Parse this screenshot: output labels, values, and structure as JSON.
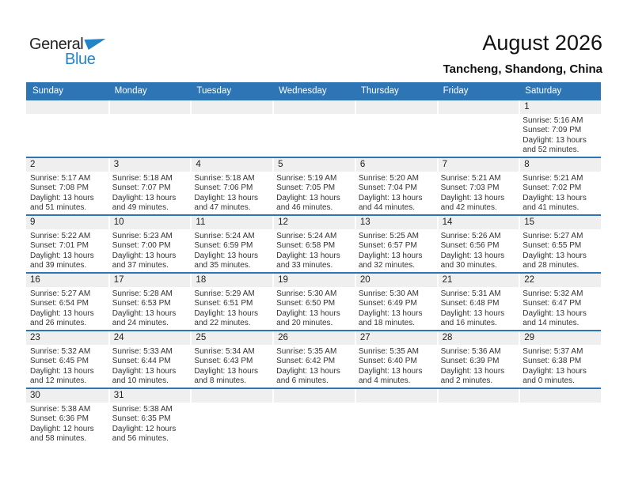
{
  "logo": {
    "part1": "General",
    "part2": "Blue"
  },
  "header": {
    "title": "August 2026",
    "location": "Tancheng, Shandong, China"
  },
  "colors": {
    "accent_blue": "#2E75B6",
    "logo_blue": "#2383C6",
    "day_strip_gray": "#EFEFEF"
  },
  "weekdays": [
    "Sunday",
    "Monday",
    "Tuesday",
    "Wednesday",
    "Thursday",
    "Friday",
    "Saturday"
  ],
  "weeks": [
    [
      null,
      null,
      null,
      null,
      null,
      null,
      {
        "day": "1",
        "lines": [
          "Sunrise: 5:16 AM",
          "Sunset: 7:09 PM",
          "Daylight: 13 hours",
          "and 52 minutes."
        ]
      }
    ],
    [
      {
        "day": "2",
        "lines": [
          "Sunrise: 5:17 AM",
          "Sunset: 7:08 PM",
          "Daylight: 13 hours",
          "and 51 minutes."
        ]
      },
      {
        "day": "3",
        "lines": [
          "Sunrise: 5:18 AM",
          "Sunset: 7:07 PM",
          "Daylight: 13 hours",
          "and 49 minutes."
        ]
      },
      {
        "day": "4",
        "lines": [
          "Sunrise: 5:18 AM",
          "Sunset: 7:06 PM",
          "Daylight: 13 hours",
          "and 47 minutes."
        ]
      },
      {
        "day": "5",
        "lines": [
          "Sunrise: 5:19 AM",
          "Sunset: 7:05 PM",
          "Daylight: 13 hours",
          "and 46 minutes."
        ]
      },
      {
        "day": "6",
        "lines": [
          "Sunrise: 5:20 AM",
          "Sunset: 7:04 PM",
          "Daylight: 13 hours",
          "and 44 minutes."
        ]
      },
      {
        "day": "7",
        "lines": [
          "Sunrise: 5:21 AM",
          "Sunset: 7:03 PM",
          "Daylight: 13 hours",
          "and 42 minutes."
        ]
      },
      {
        "day": "8",
        "lines": [
          "Sunrise: 5:21 AM",
          "Sunset: 7:02 PM",
          "Daylight: 13 hours",
          "and 41 minutes."
        ]
      }
    ],
    [
      {
        "day": "9",
        "lines": [
          "Sunrise: 5:22 AM",
          "Sunset: 7:01 PM",
          "Daylight: 13 hours",
          "and 39 minutes."
        ]
      },
      {
        "day": "10",
        "lines": [
          "Sunrise: 5:23 AM",
          "Sunset: 7:00 PM",
          "Daylight: 13 hours",
          "and 37 minutes."
        ]
      },
      {
        "day": "11",
        "lines": [
          "Sunrise: 5:24 AM",
          "Sunset: 6:59 PM",
          "Daylight: 13 hours",
          "and 35 minutes."
        ]
      },
      {
        "day": "12",
        "lines": [
          "Sunrise: 5:24 AM",
          "Sunset: 6:58 PM",
          "Daylight: 13 hours",
          "and 33 minutes."
        ]
      },
      {
        "day": "13",
        "lines": [
          "Sunrise: 5:25 AM",
          "Sunset: 6:57 PM",
          "Daylight: 13 hours",
          "and 32 minutes."
        ]
      },
      {
        "day": "14",
        "lines": [
          "Sunrise: 5:26 AM",
          "Sunset: 6:56 PM",
          "Daylight: 13 hours",
          "and 30 minutes."
        ]
      },
      {
        "day": "15",
        "lines": [
          "Sunrise: 5:27 AM",
          "Sunset: 6:55 PM",
          "Daylight: 13 hours",
          "and 28 minutes."
        ]
      }
    ],
    [
      {
        "day": "16",
        "lines": [
          "Sunrise: 5:27 AM",
          "Sunset: 6:54 PM",
          "Daylight: 13 hours",
          "and 26 minutes."
        ]
      },
      {
        "day": "17",
        "lines": [
          "Sunrise: 5:28 AM",
          "Sunset: 6:53 PM",
          "Daylight: 13 hours",
          "and 24 minutes."
        ]
      },
      {
        "day": "18",
        "lines": [
          "Sunrise: 5:29 AM",
          "Sunset: 6:51 PM",
          "Daylight: 13 hours",
          "and 22 minutes."
        ]
      },
      {
        "day": "19",
        "lines": [
          "Sunrise: 5:30 AM",
          "Sunset: 6:50 PM",
          "Daylight: 13 hours",
          "and 20 minutes."
        ]
      },
      {
        "day": "20",
        "lines": [
          "Sunrise: 5:30 AM",
          "Sunset: 6:49 PM",
          "Daylight: 13 hours",
          "and 18 minutes."
        ]
      },
      {
        "day": "21",
        "lines": [
          "Sunrise: 5:31 AM",
          "Sunset: 6:48 PM",
          "Daylight: 13 hours",
          "and 16 minutes."
        ]
      },
      {
        "day": "22",
        "lines": [
          "Sunrise: 5:32 AM",
          "Sunset: 6:47 PM",
          "Daylight: 13 hours",
          "and 14 minutes."
        ]
      }
    ],
    [
      {
        "day": "23",
        "lines": [
          "Sunrise: 5:32 AM",
          "Sunset: 6:45 PM",
          "Daylight: 13 hours",
          "and 12 minutes."
        ]
      },
      {
        "day": "24",
        "lines": [
          "Sunrise: 5:33 AM",
          "Sunset: 6:44 PM",
          "Daylight: 13 hours",
          "and 10 minutes."
        ]
      },
      {
        "day": "25",
        "lines": [
          "Sunrise: 5:34 AM",
          "Sunset: 6:43 PM",
          "Daylight: 13 hours",
          "and 8 minutes."
        ]
      },
      {
        "day": "26",
        "lines": [
          "Sunrise: 5:35 AM",
          "Sunset: 6:42 PM",
          "Daylight: 13 hours",
          "and 6 minutes."
        ]
      },
      {
        "day": "27",
        "lines": [
          "Sunrise: 5:35 AM",
          "Sunset: 6:40 PM",
          "Daylight: 13 hours",
          "and 4 minutes."
        ]
      },
      {
        "day": "28",
        "lines": [
          "Sunrise: 5:36 AM",
          "Sunset: 6:39 PM",
          "Daylight: 13 hours",
          "and 2 minutes."
        ]
      },
      {
        "day": "29",
        "lines": [
          "Sunrise: 5:37 AM",
          "Sunset: 6:38 PM",
          "Daylight: 13 hours",
          "and 0 minutes."
        ]
      }
    ],
    [
      {
        "day": "30",
        "lines": [
          "Sunrise: 5:38 AM",
          "Sunset: 6:36 PM",
          "Daylight: 12 hours",
          "and 58 minutes."
        ]
      },
      {
        "day": "31",
        "lines": [
          "Sunrise: 5:38 AM",
          "Sunset: 6:35 PM",
          "Daylight: 12 hours",
          "and 56 minutes."
        ]
      },
      null,
      null,
      null,
      null,
      null
    ]
  ]
}
